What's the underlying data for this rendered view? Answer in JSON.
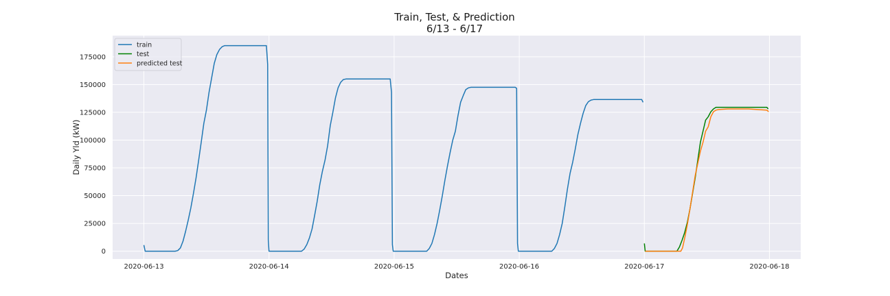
{
  "chart_data": {
    "type": "line",
    "title": "Train, Test, & Prediction",
    "subtitle": "6/13 - 6/17",
    "xlabel": "Dates",
    "ylabel": "Daily Yld (kW)",
    "x_unit": "date",
    "xlim": [
      "2020-06-12 18:00",
      "2020-06-18 06:00"
    ],
    "ylim": [
      -7000,
      194000
    ],
    "yticks": [
      0,
      25000,
      50000,
      75000,
      100000,
      125000,
      150000,
      175000
    ],
    "xticks": [
      "2020-06-13",
      "2020-06-14",
      "2020-06-15",
      "2020-06-16",
      "2020-06-17",
      "2020-06-18"
    ],
    "grid": true,
    "legend_position": "top-left",
    "series": [
      {
        "name": "train",
        "color": "#1f77b4",
        "points": [
          [
            "2020-06-13 00:00",
            5500
          ],
          [
            "2020-06-13 00:15",
            0
          ],
          [
            "2020-06-13 06:00",
            0
          ],
          [
            "2020-06-13 06:30",
            600
          ],
          [
            "2020-06-13 07:00",
            3000
          ],
          [
            "2020-06-13 07:30",
            9000
          ],
          [
            "2020-06-13 08:00",
            18000
          ],
          [
            "2020-06-13 08:30",
            28000
          ],
          [
            "2020-06-13 09:00",
            39000
          ],
          [
            "2020-06-13 09:30",
            52000
          ],
          [
            "2020-06-13 10:00",
            66000
          ],
          [
            "2020-06-13 10:30",
            82000
          ],
          [
            "2020-06-13 11:00",
            98000
          ],
          [
            "2020-06-13 11:30",
            115000
          ],
          [
            "2020-06-13 12:00",
            127000
          ],
          [
            "2020-06-13 12:30",
            143000
          ],
          [
            "2020-06-13 13:00",
            156000
          ],
          [
            "2020-06-13 13:30",
            169000
          ],
          [
            "2020-06-13 14:00",
            177000
          ],
          [
            "2020-06-13 14:30",
            181500
          ],
          [
            "2020-06-13 15:00",
            184000
          ],
          [
            "2020-06-13 15:30",
            185000
          ],
          [
            "2020-06-13 23:30",
            185000
          ],
          [
            "2020-06-13 23:45",
            168000
          ],
          [
            "2020-06-13 23:52",
            10000
          ],
          [
            "2020-06-14 00:00",
            0
          ],
          [
            "2020-06-14 06:15",
            0
          ],
          [
            "2020-06-14 06:45",
            2000
          ],
          [
            "2020-06-14 07:15",
            6000
          ],
          [
            "2020-06-14 07:45",
            12000
          ],
          [
            "2020-06-14 08:15",
            20000
          ],
          [
            "2020-06-14 08:45",
            32000
          ],
          [
            "2020-06-14 09:15",
            45000
          ],
          [
            "2020-06-14 09:45",
            60000
          ],
          [
            "2020-06-14 10:15",
            72000
          ],
          [
            "2020-06-14 10:45",
            82000
          ],
          [
            "2020-06-14 11:15",
            95000
          ],
          [
            "2020-06-14 11:45",
            113000
          ],
          [
            "2020-06-14 12:15",
            125000
          ],
          [
            "2020-06-14 12:45",
            138000
          ],
          [
            "2020-06-14 13:15",
            147000
          ],
          [
            "2020-06-14 13:45",
            152000
          ],
          [
            "2020-06-14 14:15",
            154500
          ],
          [
            "2020-06-14 14:45",
            155000
          ],
          [
            "2020-06-14 23:15",
            155000
          ],
          [
            "2020-06-14 23:30",
            143000
          ],
          [
            "2020-06-14 23:40",
            6000
          ],
          [
            "2020-06-14 23:50",
            0
          ],
          [
            "2020-06-15 06:15",
            0
          ],
          [
            "2020-06-15 06:45",
            2500
          ],
          [
            "2020-06-15 07:15",
            7000
          ],
          [
            "2020-06-15 07:45",
            15000
          ],
          [
            "2020-06-15 08:15",
            25000
          ],
          [
            "2020-06-15 08:45",
            37000
          ],
          [
            "2020-06-15 09:15",
            50000
          ],
          [
            "2020-06-15 09:45",
            64000
          ],
          [
            "2020-06-15 10:15",
            77000
          ],
          [
            "2020-06-15 10:45",
            89000
          ],
          [
            "2020-06-15 11:15",
            100000
          ],
          [
            "2020-06-15 11:45",
            108000
          ],
          [
            "2020-06-15 12:15",
            122000
          ],
          [
            "2020-06-15 12:45",
            134000
          ],
          [
            "2020-06-15 13:15",
            140000
          ],
          [
            "2020-06-15 13:45",
            145500
          ],
          [
            "2020-06-15 14:15",
            147000
          ],
          [
            "2020-06-15 14:45",
            147500
          ],
          [
            "2020-06-15 23:15",
            147500
          ],
          [
            "2020-06-15 23:30",
            146500
          ],
          [
            "2020-06-15 23:40",
            7000
          ],
          [
            "2020-06-15 23:50",
            0
          ],
          [
            "2020-06-16 06:15",
            0
          ],
          [
            "2020-06-16 06:45",
            2500
          ],
          [
            "2020-06-16 07:15",
            7000
          ],
          [
            "2020-06-16 07:45",
            15000
          ],
          [
            "2020-06-16 08:15",
            25000
          ],
          [
            "2020-06-16 08:45",
            40000
          ],
          [
            "2020-06-16 09:15",
            56000
          ],
          [
            "2020-06-16 09:45",
            70000
          ],
          [
            "2020-06-16 10:15",
            80000
          ],
          [
            "2020-06-16 10:45",
            92000
          ],
          [
            "2020-06-16 11:15",
            105000
          ],
          [
            "2020-06-16 11:45",
            115000
          ],
          [
            "2020-06-16 12:15",
            124000
          ],
          [
            "2020-06-16 12:45",
            131000
          ],
          [
            "2020-06-16 13:15",
            134500
          ],
          [
            "2020-06-16 13:45",
            136000
          ],
          [
            "2020-06-16 14:15",
            136500
          ],
          [
            "2020-06-16 23:30",
            136500
          ],
          [
            "2020-06-16 23:45",
            134000
          ]
        ]
      },
      {
        "name": "test",
        "color": "#008000",
        "points": [
          [
            "2020-06-17 00:00",
            7000
          ],
          [
            "2020-06-17 00:10",
            0
          ],
          [
            "2020-06-17 06:15",
            0
          ],
          [
            "2020-06-17 06:45",
            4000
          ],
          [
            "2020-06-17 07:15",
            10000
          ],
          [
            "2020-06-17 07:45",
            17000
          ],
          [
            "2020-06-17 08:15",
            26000
          ],
          [
            "2020-06-17 08:45",
            38000
          ],
          [
            "2020-06-17 09:15",
            52000
          ],
          [
            "2020-06-17 09:45",
            66000
          ],
          [
            "2020-06-17 10:15",
            82000
          ],
          [
            "2020-06-17 10:45",
            98000
          ],
          [
            "2020-06-17 11:15",
            108000
          ],
          [
            "2020-06-17 11:45",
            118000
          ],
          [
            "2020-06-17 12:15",
            121000
          ],
          [
            "2020-06-17 12:45",
            125500
          ],
          [
            "2020-06-17 13:15",
            128000
          ],
          [
            "2020-06-17 13:45",
            129500
          ],
          [
            "2020-06-17 14:15",
            129500
          ],
          [
            "2020-06-17 23:30",
            129500
          ],
          [
            "2020-06-17 23:45",
            128000
          ]
        ]
      },
      {
        "name": "predicted test",
        "color": "#ff7f0e",
        "points": [
          [
            "2020-06-17 00:10",
            0
          ],
          [
            "2020-06-17 06:30",
            0
          ],
          [
            "2020-06-17 07:00",
            0
          ],
          [
            "2020-06-17 07:20",
            3000
          ],
          [
            "2020-06-17 07:45",
            12000
          ],
          [
            "2020-06-17 08:15",
            24000
          ],
          [
            "2020-06-17 08:45",
            38000
          ],
          [
            "2020-06-17 09:15",
            53000
          ],
          [
            "2020-06-17 09:45",
            68000
          ],
          [
            "2020-06-17 10:15",
            79000
          ],
          [
            "2020-06-17 10:45",
            90000
          ],
          [
            "2020-06-17 11:15",
            98000
          ],
          [
            "2020-06-17 11:45",
            108000
          ],
          [
            "2020-06-17 12:15",
            112000
          ],
          [
            "2020-06-17 12:45",
            121000
          ],
          [
            "2020-06-17 13:15",
            125500
          ],
          [
            "2020-06-17 13:45",
            127000
          ],
          [
            "2020-06-17 14:15",
            127500
          ],
          [
            "2020-06-17 16:00",
            128000
          ],
          [
            "2020-06-17 20:00",
            128000
          ],
          [
            "2020-06-17 23:30",
            127000
          ],
          [
            "2020-06-17 23:50",
            125500
          ]
        ]
      }
    ]
  }
}
